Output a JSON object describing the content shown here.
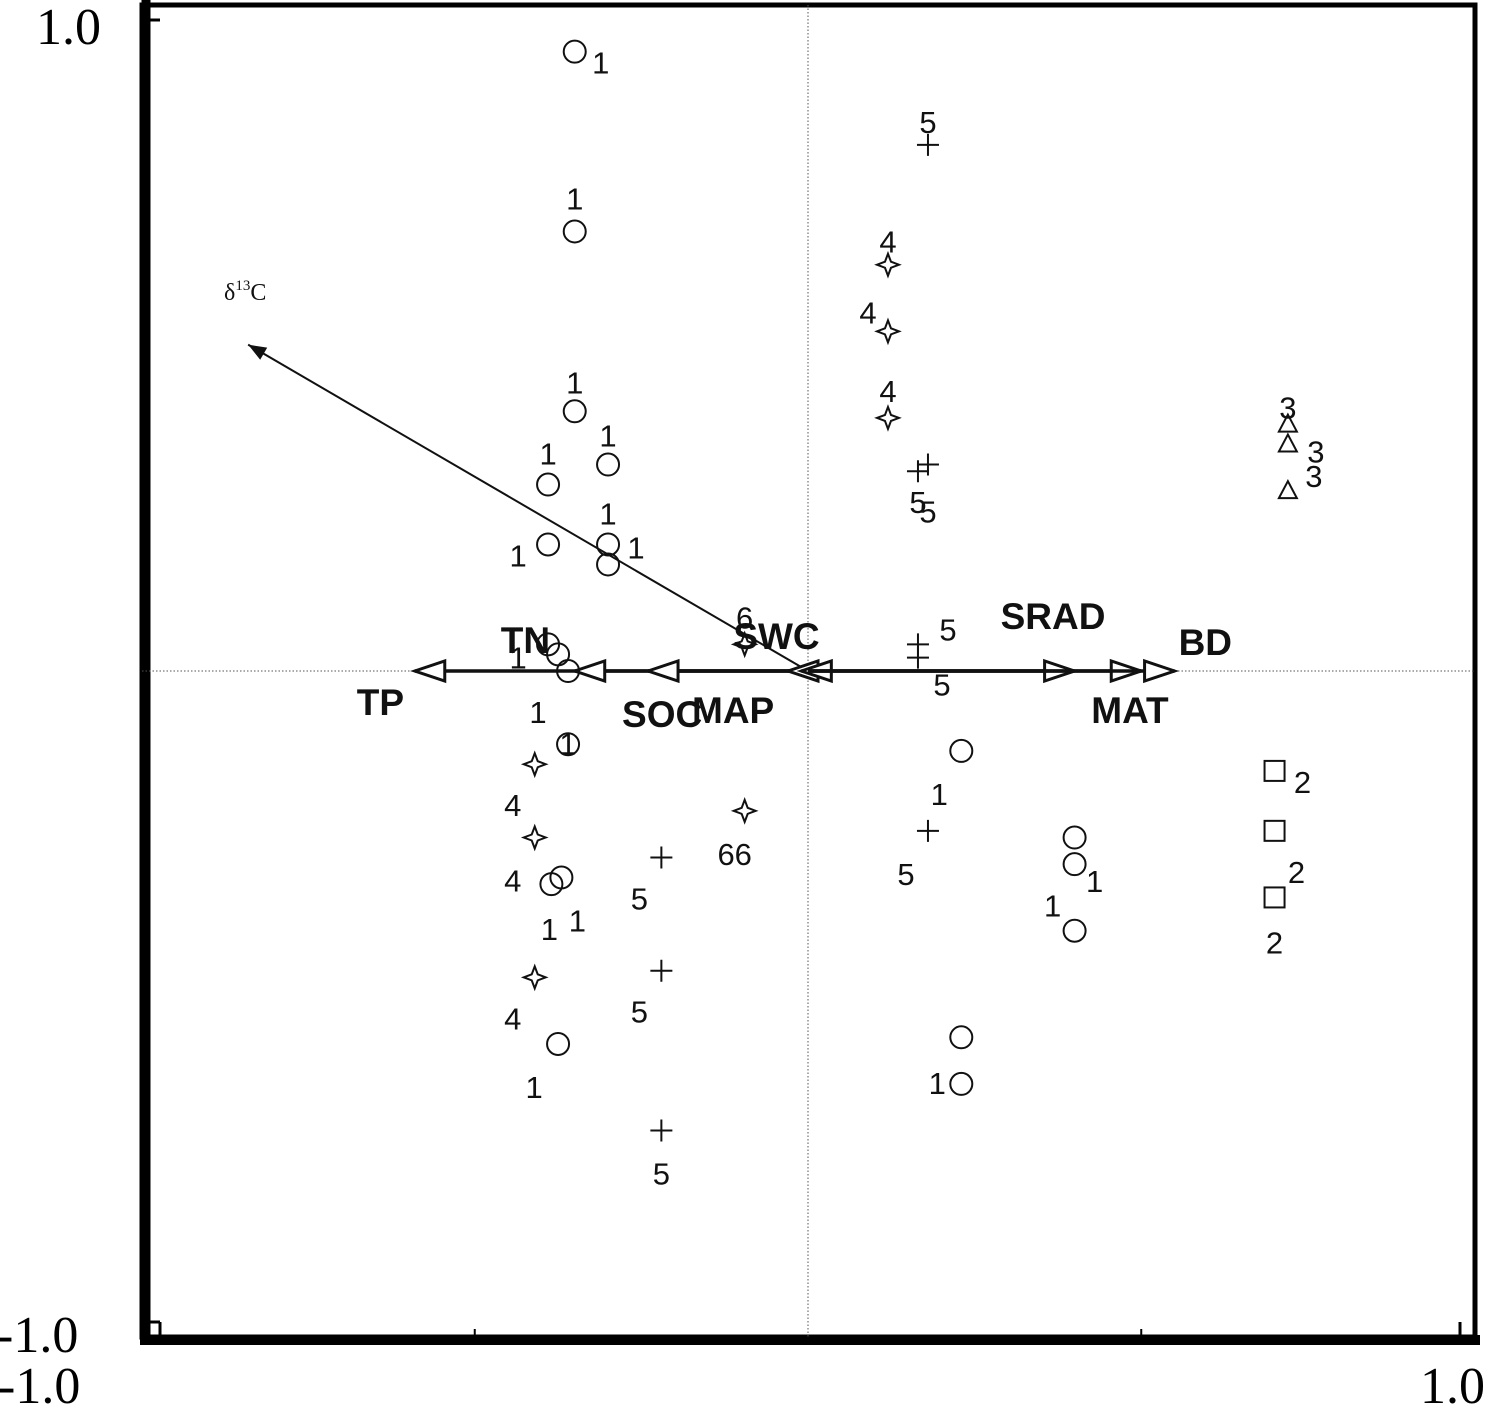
{
  "chart_data": {
    "type": "scatter",
    "title": "",
    "xlim": [
      -1.0,
      1.0
    ],
    "ylim": [
      -1.0,
      1.0
    ],
    "x_tick_labels": [
      "-1.0",
      "1.0"
    ],
    "y_tick_labels": [
      "1.0",
      "-1.0"
    ],
    "grid": false,
    "reference_lines": "dotted lines at x = 0 and y = 0",
    "response_variable": {
      "label": "δ13C",
      "label_main": "δ",
      "label_sup": "13",
      "label_tail": "C",
      "x": -0.84,
      "y": 0.49
    },
    "environmental_variables": [
      {
        "name": "TP",
        "x": -0.59,
        "y": 0.0
      },
      {
        "name": "TN",
        "x": -0.35,
        "y": 0.0
      },
      {
        "name": "SOC",
        "x": -0.24,
        "y": 0.0
      },
      {
        "name": "MAP",
        "x": -0.03,
        "y": 0.0
      },
      {
        "name": "SWC",
        "x": -0.01,
        "y": 0.0
      },
      {
        "name": "SRAD",
        "x": 0.4,
        "y": 0.0
      },
      {
        "name": "MAT",
        "x": 0.5,
        "y": 0.0
      },
      {
        "name": "BD",
        "x": 0.55,
        "y": 0.0
      }
    ],
    "samples": [
      {
        "group": "1",
        "marker": "circle",
        "label": "1",
        "x": -0.35,
        "y": 0.93
      },
      {
        "group": "1",
        "marker": "circle",
        "label": "1",
        "x": -0.35,
        "y": 0.66
      },
      {
        "group": "1",
        "marker": "circle",
        "label": "1",
        "x": -0.35,
        "y": 0.39
      },
      {
        "group": "1",
        "marker": "circle",
        "label": "1",
        "x": -0.3,
        "y": 0.31
      },
      {
        "group": "1",
        "marker": "circle",
        "label": "1",
        "x": -0.39,
        "y": 0.28
      },
      {
        "group": "1",
        "marker": "circle",
        "label": "1",
        "x": -0.39,
        "y": 0.19
      },
      {
        "group": "1",
        "marker": "circle",
        "label": "1",
        "x": -0.3,
        "y": 0.19
      },
      {
        "group": "1",
        "marker": "circle",
        "label": "1",
        "x": -0.3,
        "y": 0.16
      },
      {
        "group": "1",
        "marker": "circle",
        "label": "1",
        "x": -0.39,
        "y": 0.04
      },
      {
        "group": "1",
        "marker": "circle",
        "label": "",
        "x": -0.375,
        "y": 0.025
      },
      {
        "group": "1",
        "marker": "circle",
        "label": "1",
        "x": -0.36,
        "y": 0.0
      },
      {
        "group": "1",
        "marker": "circle",
        "label": "1",
        "x": -0.36,
        "y": -0.11
      },
      {
        "group": "1",
        "marker": "circle",
        "label": "1",
        "x": -0.37,
        "y": -0.31
      },
      {
        "group": "1",
        "marker": "circle",
        "label": "1",
        "x": -0.385,
        "y": -0.32
      },
      {
        "group": "1",
        "marker": "circle",
        "label": "1",
        "x": -0.375,
        "y": -0.56
      },
      {
        "group": "1",
        "marker": "circle",
        "label": "1",
        "x": 0.23,
        "y": -0.12
      },
      {
        "group": "1",
        "marker": "circle",
        "label": "",
        "x": 0.4,
        "y": -0.25
      },
      {
        "group": "1",
        "marker": "circle",
        "label": "1",
        "x": 0.4,
        "y": -0.29
      },
      {
        "group": "1",
        "marker": "circle",
        "label": "1",
        "x": 0.4,
        "y": -0.39
      },
      {
        "group": "1",
        "marker": "circle",
        "label": "",
        "x": 0.23,
        "y": -0.55
      },
      {
        "group": "1",
        "marker": "circle",
        "label": "1",
        "x": 0.23,
        "y": -0.62
      },
      {
        "group": "2",
        "marker": "square",
        "label": "2",
        "x": 0.7,
        "y": -0.15
      },
      {
        "group": "2",
        "marker": "square",
        "label": "2",
        "x": 0.7,
        "y": -0.24
      },
      {
        "group": "2",
        "marker": "square",
        "label": "2",
        "x": 0.7,
        "y": -0.34
      },
      {
        "group": "3",
        "marker": "triangle",
        "label": "3",
        "x": 0.72,
        "y": 0.37
      },
      {
        "group": "3",
        "marker": "triangle",
        "label": "3",
        "x": 0.72,
        "y": 0.34
      },
      {
        "group": "3",
        "marker": "triangle",
        "label": "3",
        "x": 0.72,
        "y": 0.27
      },
      {
        "group": "4",
        "marker": "star",
        "label": "4",
        "x": 0.12,
        "y": 0.61
      },
      {
        "group": "4",
        "marker": "star",
        "label": "4",
        "x": 0.12,
        "y": 0.51
      },
      {
        "group": "4",
        "marker": "star",
        "label": "4",
        "x": 0.12,
        "y": 0.38
      },
      {
        "group": "4",
        "marker": "star",
        "label": "4",
        "x": -0.41,
        "y": -0.14
      },
      {
        "group": "4",
        "marker": "star",
        "label": "4",
        "x": -0.41,
        "y": -0.25
      },
      {
        "group": "4",
        "marker": "star",
        "label": "4",
        "x": -0.41,
        "y": -0.46
      },
      {
        "group": "5",
        "marker": "plus",
        "label": "5",
        "x": 0.18,
        "y": 0.79
      },
      {
        "group": "5",
        "marker": "plus",
        "label": "5",
        "x": 0.18,
        "y": 0.31
      },
      {
        "group": "5",
        "marker": "plus",
        "label": "5",
        "x": 0.165,
        "y": 0.3
      },
      {
        "group": "5",
        "marker": "plus",
        "label": "5",
        "x": 0.165,
        "y": 0.04
      },
      {
        "group": "5",
        "marker": "plus",
        "label": "5",
        "x": 0.165,
        "y": 0.02
      },
      {
        "group": "5",
        "marker": "plus",
        "label": "5",
        "x": 0.18,
        "y": -0.24
      },
      {
        "group": "5",
        "marker": "plus",
        "label": "5",
        "x": -0.22,
        "y": -0.28
      },
      {
        "group": "5",
        "marker": "plus",
        "label": "5",
        "x": -0.22,
        "y": -0.45
      },
      {
        "group": "5",
        "marker": "plus",
        "label": "5",
        "x": -0.22,
        "y": -0.69
      },
      {
        "group": "6",
        "marker": "star",
        "label": "6",
        "x": -0.095,
        "y": 0.04
      },
      {
        "group": "6",
        "marker": "star",
        "label": "66",
        "x": -0.095,
        "y": -0.21
      }
    ]
  }
}
